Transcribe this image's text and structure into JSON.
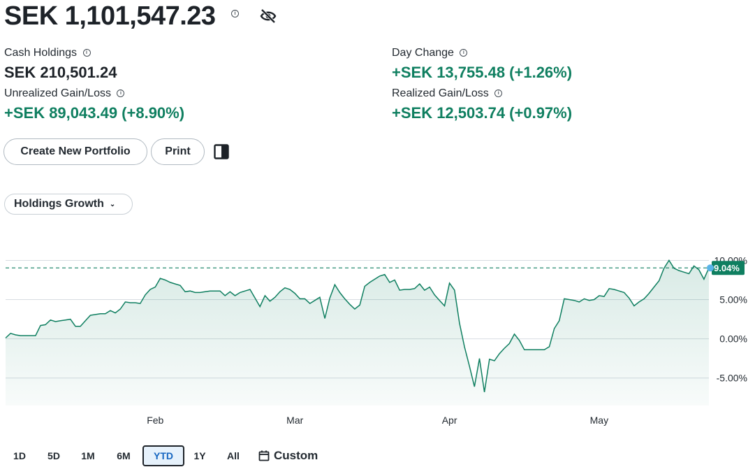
{
  "summary": {
    "total_value": "SEK 1,101,547.23",
    "cash_label": "Cash Holdings",
    "cash_value": "SEK 210,501.24",
    "day_change_label": "Day Change",
    "day_change_value": "+SEK 13,755.48 (+1.26%)",
    "unrealized_label": "Unrealized Gain/Loss",
    "unrealized_value": "+SEK 89,043.49 (+8.90%)",
    "realized_label": "Realized Gain/Loss",
    "realized_value": "+SEK 12,503.74 (+0.97%)"
  },
  "icons": {
    "info": "info-icon",
    "visibility": "eye-slash-icon",
    "layout": "panel-layout-icon",
    "calendar": "calendar-icon",
    "dropdown": "chevron-down-icon"
  },
  "actions": {
    "create_portfolio": "Create New Portfolio",
    "print": "Print"
  },
  "chart_selector": {
    "label": "Holdings Growth"
  },
  "colors": {
    "positive": "#0f7f60",
    "line": "#0f7f60",
    "active_range": "#1565c0",
    "marker": "#5ab4e8"
  },
  "chart_data": {
    "type": "area",
    "title": "",
    "xlabel": "",
    "ylabel": "",
    "y_unit": "%",
    "ylim": [
      -8.5,
      12
    ],
    "y_ticks": [
      -5,
      0,
      5,
      10
    ],
    "y_tick_labels": [
      "-5.00%",
      "0.00%",
      "5.00%",
      "10.00%"
    ],
    "x_range": [
      "Jan 2",
      "May 23"
    ],
    "x_ticks": [
      "Feb",
      "Mar",
      "Apr",
      "May"
    ],
    "x_tick_days": [
      32,
      60,
      91,
      121
    ],
    "current_value": 9.04,
    "current_label": "9.04%",
    "reference_line": 9.04,
    "grid": true,
    "series": [
      {
        "values": [
          [
            2,
            0.1
          ],
          [
            3,
            0.7
          ],
          [
            4,
            0.5
          ],
          [
            5,
            0.4
          ],
          [
            6,
            0.4
          ],
          [
            7,
            0.4
          ],
          [
            8,
            0.4
          ],
          [
            9,
            1.7
          ],
          [
            10,
            1.8
          ],
          [
            11,
            2.4
          ],
          [
            12,
            2.2
          ],
          [
            13,
            2.3
          ],
          [
            14,
            2.4
          ],
          [
            15,
            2.5
          ],
          [
            16,
            1.6
          ],
          [
            17,
            1.6
          ],
          [
            18,
            2.3
          ],
          [
            19,
            3.0
          ],
          [
            20,
            3.1
          ],
          [
            21,
            3.2
          ],
          [
            22,
            3.2
          ],
          [
            23,
            3.6
          ],
          [
            24,
            3.3
          ],
          [
            25,
            3.8
          ],
          [
            26,
            4.7
          ],
          [
            27,
            4.6
          ],
          [
            28,
            4.6
          ],
          [
            29,
            4.5
          ],
          [
            30,
            5.6
          ],
          [
            31,
            6.3
          ],
          [
            32,
            6.6
          ],
          [
            33,
            7.7
          ],
          [
            34,
            7.5
          ],
          [
            35,
            7.2
          ],
          [
            36,
            7.0
          ],
          [
            37,
            6.8
          ],
          [
            38,
            6.0
          ],
          [
            39,
            6.1
          ],
          [
            40,
            5.9
          ],
          [
            41,
            5.9
          ],
          [
            42,
            6.0
          ],
          [
            43,
            6.1
          ],
          [
            44,
            6.1
          ],
          [
            45,
            6.1
          ],
          [
            46,
            5.5
          ],
          [
            47,
            6.0
          ],
          [
            48,
            5.5
          ],
          [
            49,
            5.9
          ],
          [
            50,
            6.1
          ],
          [
            51,
            6.3
          ],
          [
            52,
            5.2
          ],
          [
            53,
            4.1
          ],
          [
            54,
            5.5
          ],
          [
            55,
            4.8
          ],
          [
            56,
            5.3
          ],
          [
            57,
            6.0
          ],
          [
            58,
            6.5
          ],
          [
            59,
            6.3
          ],
          [
            60,
            5.8
          ],
          [
            61,
            5.1
          ],
          [
            62,
            5.1
          ],
          [
            63,
            4.5
          ],
          [
            64,
            4.9
          ],
          [
            65,
            5.3
          ],
          [
            66,
            2.6
          ],
          [
            67,
            5.2
          ],
          [
            68,
            6.9
          ],
          [
            69,
            5.9
          ],
          [
            70,
            5.1
          ],
          [
            71,
            4.4
          ],
          [
            72,
            3.8
          ],
          [
            73,
            4.3
          ],
          [
            74,
            6.7
          ],
          [
            75,
            7.2
          ],
          [
            76,
            7.6
          ],
          [
            77,
            8.0
          ],
          [
            78,
            8.2
          ],
          [
            79,
            7.2
          ],
          [
            80,
            7.5
          ],
          [
            81,
            6.2
          ],
          [
            82,
            6.3
          ],
          [
            83,
            6.3
          ],
          [
            84,
            6.4
          ],
          [
            85,
            7.0
          ],
          [
            86,
            6.2
          ],
          [
            87,
            6.6
          ],
          [
            88,
            5.6
          ],
          [
            89,
            4.9
          ],
          [
            90,
            4.2
          ],
          [
            91,
            7.1
          ],
          [
            92,
            6.2
          ],
          [
            93,
            2.0
          ],
          [
            94,
            -1.0
          ],
          [
            95,
            -3.5
          ],
          [
            96,
            -6.1
          ],
          [
            97,
            -2.5
          ],
          [
            98,
            -6.8
          ],
          [
            99,
            -2.6
          ],
          [
            100,
            -2.8
          ],
          [
            101,
            -1.9
          ],
          [
            102,
            -1.2
          ],
          [
            103,
            -0.6
          ],
          [
            104,
            0.6
          ],
          [
            105,
            -0.2
          ],
          [
            106,
            -1.4
          ],
          [
            107,
            -1.4
          ],
          [
            108,
            -1.4
          ],
          [
            109,
            -1.4
          ],
          [
            110,
            -1.4
          ],
          [
            111,
            -1.0
          ],
          [
            112,
            1.3
          ],
          [
            113,
            2.3
          ],
          [
            114,
            5.1
          ],
          [
            115,
            5.0
          ],
          [
            116,
            4.9
          ],
          [
            117,
            4.7
          ],
          [
            118,
            5.1
          ],
          [
            119,
            4.9
          ],
          [
            120,
            5.0
          ],
          [
            121,
            5.5
          ],
          [
            122,
            5.4
          ],
          [
            123,
            6.4
          ],
          [
            124,
            6.3
          ],
          [
            125,
            6.1
          ],
          [
            126,
            5.9
          ],
          [
            127,
            5.2
          ],
          [
            128,
            4.2
          ],
          [
            129,
            4.7
          ],
          [
            130,
            5.1
          ],
          [
            131,
            5.8
          ],
          [
            132,
            6.6
          ],
          [
            133,
            7.4
          ],
          [
            134,
            9.0
          ],
          [
            135,
            10.0
          ],
          [
            136,
            9.0
          ],
          [
            137,
            8.7
          ],
          [
            138,
            8.5
          ],
          [
            139,
            8.3
          ],
          [
            140,
            9.3
          ],
          [
            141,
            8.8
          ],
          [
            142,
            7.6
          ],
          [
            143,
            9.04
          ]
        ]
      }
    ]
  },
  "time_ranges": {
    "options": [
      "1D",
      "5D",
      "1M",
      "6M",
      "YTD",
      "1Y",
      "All"
    ],
    "selected": "YTD",
    "custom_label": "Custom"
  }
}
